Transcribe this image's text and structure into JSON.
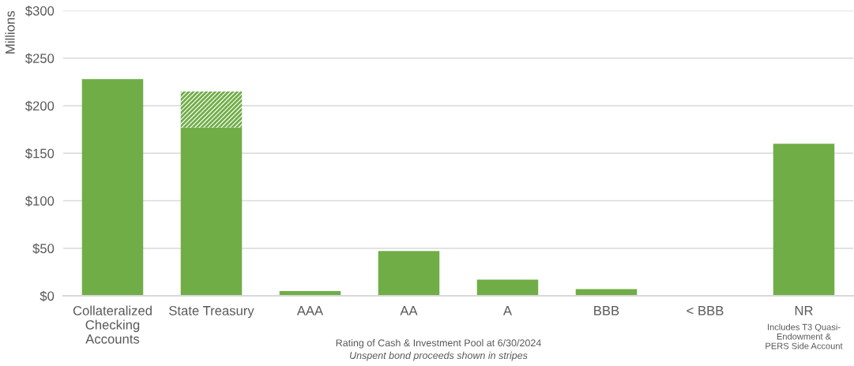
{
  "chart_data": {
    "type": "bar",
    "stacked": true,
    "ylabel": "Millions",
    "xlabel": "Rating of Cash & Investment Pool at 6/30/2024",
    "annotations": [
      "Unspent bond proceeds shown in stripes",
      "Includes T3 Quasi-Endowment & PERS Side Account"
    ],
    "categories": [
      "Collateralized Checking Accounts",
      "State Treasury",
      "AAA",
      "AA",
      "A",
      "BBB",
      "< BBB",
      "NR"
    ],
    "series": [
      {
        "color": "#70ad47",
        "values": [
          228,
          177,
          5,
          47,
          17,
          7,
          0,
          160
        ]
      },
      {
        "color": "#70ad47",
        "values": [
          null,
          38,
          null,
          null,
          null,
          null,
          null,
          null
        ]
      }
    ],
    "ylim": [
      0,
      300
    ],
    "yticks": [
      {
        "value": 0,
        "label": "$0"
      },
      {
        "value": 50,
        "label": "$50"
      },
      {
        "value": 100,
        "label": "$100"
      },
      {
        "value": 150,
        "label": "$150"
      },
      {
        "value": 200,
        "label": "$200"
      },
      {
        "value": 250,
        "label": "$250"
      },
      {
        "value": 300,
        "label": "$300"
      }
    ],
    "grid": "y"
  }
}
